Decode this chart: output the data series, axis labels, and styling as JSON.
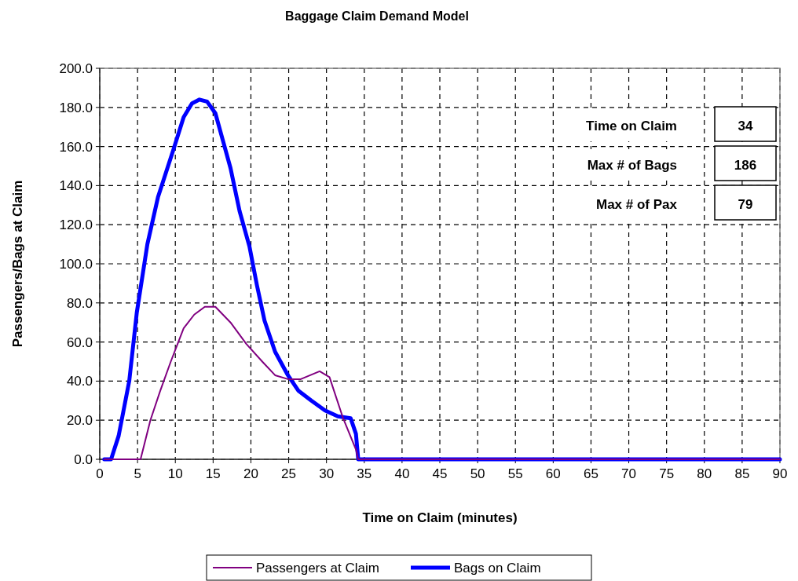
{
  "chart_data": {
    "type": "line",
    "title": "Baggage Claim Demand Model",
    "xlabel": "Time on Claim (minutes)",
    "ylabel": "Passengers/Bags at Claim",
    "xlim": [
      0,
      90
    ],
    "ylim": [
      0,
      200
    ],
    "xticks": [
      0,
      5,
      10,
      15,
      20,
      25,
      30,
      35,
      40,
      45,
      50,
      55,
      60,
      65,
      70,
      75,
      80,
      85,
      90
    ],
    "yticks": [
      {
        "value": 0,
        "label": "0.0"
      },
      {
        "value": 20,
        "label": "20.0"
      },
      {
        "value": 40,
        "label": "40.0"
      },
      {
        "value": 60,
        "label": "60.0"
      },
      {
        "value": 80,
        "label": "80.0"
      },
      {
        "value": 100,
        "label": "100.0"
      },
      {
        "value": 120,
        "label": "120.0"
      },
      {
        "value": 140,
        "label": "140.0"
      },
      {
        "value": 160,
        "label": "160.0"
      },
      {
        "value": 180,
        "label": "180.0"
      },
      {
        "value": 200,
        "label": "200.0"
      }
    ],
    "grid": true,
    "legend": "bottom",
    "marker": "none",
    "line_style": "solid",
    "annotations": [
      "Time on Claim",
      "34",
      "Max # of Bags",
      "186",
      "Max # of Pax",
      "79"
    ],
    "series": [
      {
        "name": "Passengers at Claim",
        "color": "#800080",
        "x": [
          0.6,
          5.4,
          6.7,
          8.0,
          9.4,
          11.1,
          12.5,
          13.9,
          15.3,
          17.3,
          19.4,
          21.5,
          23.2,
          24.9,
          26.6,
          29.1,
          30.4,
          32.2,
          33.9,
          34.2,
          90
        ],
        "values": [
          0,
          0,
          20,
          35,
          50,
          67,
          74,
          78,
          78,
          70,
          59,
          50,
          43,
          41,
          41,
          45,
          42,
          21,
          5,
          0,
          0
        ]
      },
      {
        "name": "Bags on Claim",
        "color": "#0000ff",
        "x": [
          0.6,
          1.5,
          2.5,
          3.9,
          4.9,
          6.3,
          7.7,
          9.8,
          11.1,
          12.2,
          13.2,
          14.2,
          15.3,
          16.3,
          17.3,
          18.5,
          19.8,
          20.8,
          21.8,
          23.2,
          24.9,
          26.3,
          28.0,
          29.8,
          31.5,
          33.2,
          33.9,
          34.2,
          90
        ],
        "values": [
          0,
          0,
          12,
          40,
          75,
          110,
          134,
          159,
          175,
          182,
          184,
          183,
          177,
          163,
          149,
          127,
          109,
          89,
          71,
          55,
          43,
          35,
          30,
          25,
          22,
          21,
          13,
          0,
          0
        ]
      }
    ]
  }
}
